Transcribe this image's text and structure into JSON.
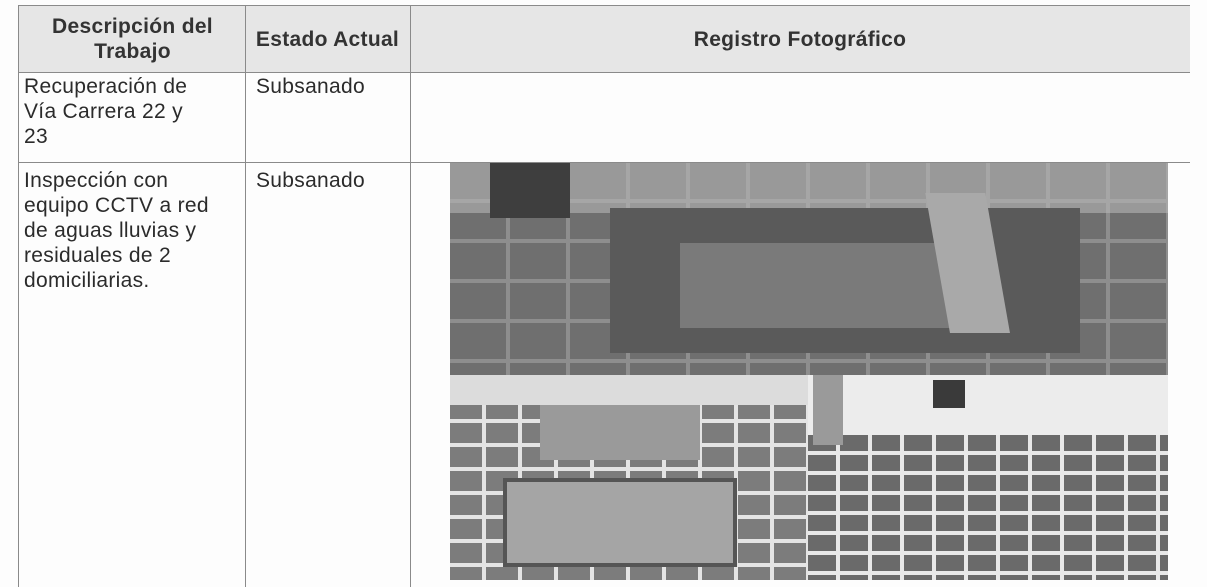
{
  "table": {
    "header": [
      "Descripción del Trabajo",
      "Estado Actual",
      "Registro Fotográfico"
    ],
    "rows": [
      [
        "Recuperación de Vía Carrera 22 y 23",
        "Subsanado"
      ],
      [
        "Inspección con equipo CCTV a red de aguas lluvias y residuales de 2 domiciliarias.",
        "Subsanado"
      ]
    ]
  }
}
